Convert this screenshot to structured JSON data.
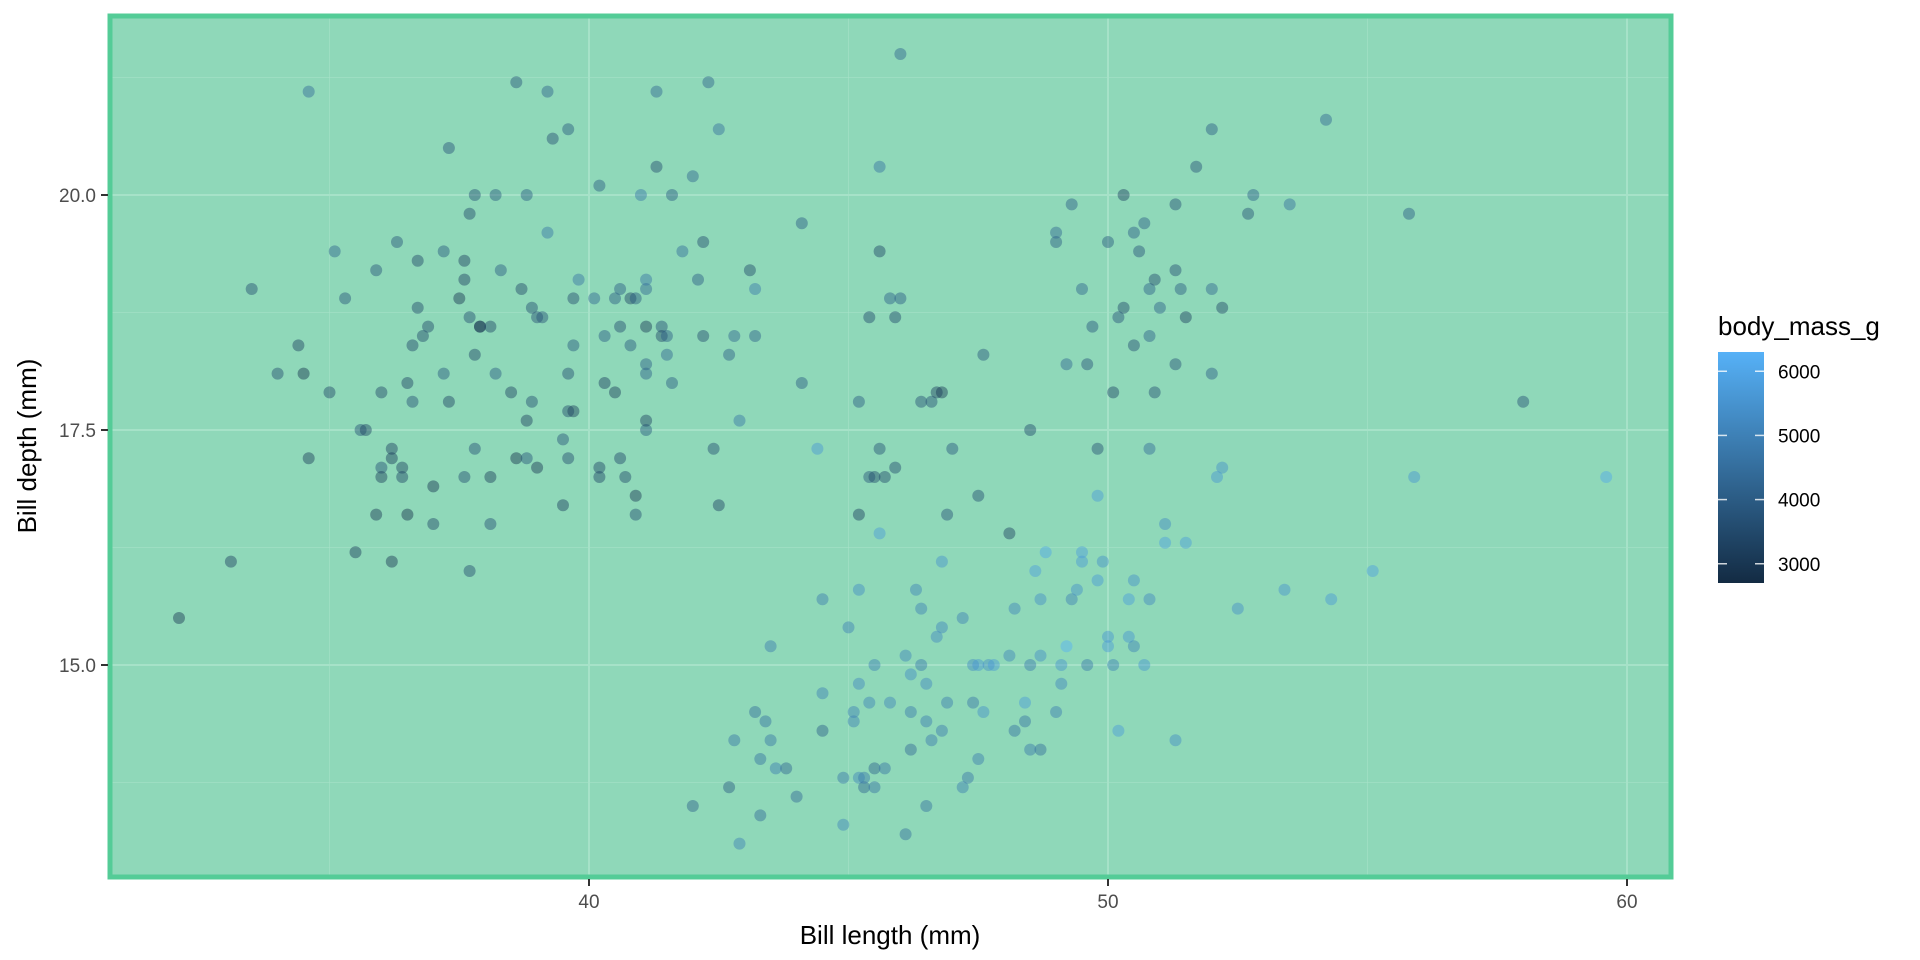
{
  "chart_data": {
    "type": "scatter",
    "title": "",
    "xlabel": "Bill length (mm)",
    "ylabel": "Bill depth (mm)",
    "xlim": [
      31.0,
      61.0
    ],
    "ylim": [
      12.7,
      21.9
    ],
    "x_ticks": [
      40,
      50,
      60
    ],
    "x_tick_labels": [
      "40",
      "50",
      "60"
    ],
    "y_ticks": [
      15.0,
      17.5,
      20.0
    ],
    "y_tick_labels": [
      "15.0",
      "17.5",
      "20.0"
    ],
    "grid": true,
    "panel_background": "#8fd8b9",
    "panel_border": "#54cc97",
    "gridline_color": "#a6e2c8",
    "legend": {
      "title": "body_mass_g",
      "position": "right",
      "type": "colorbar",
      "ticks": [
        3000,
        4000,
        5000,
        6000
      ],
      "tick_labels": [
        "3000",
        "4000",
        "5000",
        "6000"
      ],
      "low_color": "#132b43",
      "high_color": "#56b1f7",
      "range": [
        2700,
        6300
      ]
    },
    "point_alpha": 0.45,
    "points": [
      [
        32.1,
        15.5,
        3050
      ],
      [
        33.1,
        16.1,
        3300
      ],
      [
        33.5,
        19.0,
        3600
      ],
      [
        34.0,
        18.1,
        3550
      ],
      [
        34.4,
        18.4,
        3325
      ],
      [
        34.5,
        18.1,
        2900
      ],
      [
        34.6,
        21.1,
        4400
      ],
      [
        34.6,
        17.2,
        3200
      ],
      [
        35.0,
        17.9,
        3450
      ],
      [
        35.1,
        19.4,
        4200
      ],
      [
        35.3,
        18.9,
        3800
      ],
      [
        35.5,
        16.2,
        3150
      ],
      [
        35.6,
        17.5,
        3700
      ],
      [
        35.7,
        17.5,
        3350
      ],
      [
        35.9,
        16.6,
        3050
      ],
      [
        35.9,
        19.2,
        3800
      ],
      [
        36.0,
        17.9,
        3450
      ],
      [
        36.0,
        17.1,
        3700
      ],
      [
        36.0,
        17.0,
        3200
      ],
      [
        36.2,
        16.1,
        3050
      ],
      [
        36.2,
        17.3,
        3300
      ],
      [
        36.2,
        17.2,
        3150
      ],
      [
        36.3,
        19.5,
        3800
      ],
      [
        36.4,
        17.1,
        3325
      ],
      [
        36.4,
        17.0,
        3400
      ],
      [
        36.5,
        16.6,
        2850
      ],
      [
        36.5,
        18.0,
        3350
      ],
      [
        36.6,
        17.8,
        3700
      ],
      [
        36.6,
        18.4,
        3475
      ],
      [
        36.7,
        18.8,
        3500
      ],
      [
        36.7,
        19.3,
        3450
      ],
      [
        36.8,
        18.5,
        3500
      ],
      [
        36.9,
        18.6,
        3500
      ],
      [
        37.0,
        16.9,
        3000
      ],
      [
        37.0,
        16.5,
        3450
      ],
      [
        37.2,
        18.1,
        3900
      ],
      [
        37.2,
        19.4,
        3900
      ],
      [
        37.3,
        20.5,
        3775
      ],
      [
        37.3,
        17.8,
        3350
      ],
      [
        37.5,
        18.9,
        2975
      ],
      [
        37.6,
        19.1,
        3300
      ],
      [
        37.6,
        17.0,
        3600
      ],
      [
        37.6,
        19.3,
        3300
      ],
      [
        37.7,
        18.7,
        3600
      ],
      [
        37.7,
        16.0,
        3575
      ],
      [
        37.7,
        19.8,
        3500
      ],
      [
        37.8,
        18.3,
        3400
      ],
      [
        37.8,
        17.3,
        3700
      ],
      [
        37.8,
        20.0,
        3700
      ],
      [
        37.9,
        18.6,
        3200
      ],
      [
        37.9,
        18.6,
        2900
      ],
      [
        38.1,
        17.0,
        3175
      ],
      [
        38.1,
        18.6,
        3425
      ],
      [
        38.1,
        16.5,
        3700
      ],
      [
        38.2,
        18.1,
        3950
      ],
      [
        38.2,
        20.0,
        3900
      ],
      [
        38.3,
        19.2,
        3950
      ],
      [
        38.5,
        17.9,
        3325
      ],
      [
        38.6,
        21.2,
        3800
      ],
      [
        38.6,
        17.2,
        2900
      ],
      [
        38.7,
        19.0,
        3450
      ],
      [
        38.8,
        17.2,
        3800
      ],
      [
        38.8,
        20.0,
        3950
      ],
      [
        38.8,
        17.6,
        3275
      ],
      [
        38.9,
        17.8,
        3625
      ],
      [
        38.9,
        18.8,
        3600
      ],
      [
        39.0,
        17.1,
        3050
      ],
      [
        39.0,
        18.7,
        3650
      ],
      [
        39.1,
        18.7,
        3750
      ],
      [
        39.2,
        19.6,
        4675
      ],
      [
        39.2,
        21.1,
        4150
      ],
      [
        39.3,
        20.6,
        3650
      ],
      [
        39.5,
        17.4,
        3800
      ],
      [
        39.5,
        16.7,
        3250
      ],
      [
        39.6,
        17.7,
        3500
      ],
      [
        39.6,
        17.2,
        3550
      ],
      [
        39.6,
        18.1,
        3600
      ],
      [
        39.6,
        20.7,
        3900
      ],
      [
        39.7,
        18.4,
        3900
      ],
      [
        39.7,
        17.7,
        3200
      ],
      [
        39.7,
        18.9,
        3550
      ],
      [
        39.8,
        19.1,
        4650
      ],
      [
        40.1,
        18.9,
        4300
      ],
      [
        40.2,
        17.0,
        3400
      ],
      [
        40.2,
        17.1,
        3400
      ],
      [
        40.2,
        20.1,
        3975
      ],
      [
        40.3,
        18.0,
        3250
      ],
      [
        40.3,
        18.5,
        4000
      ],
      [
        40.5,
        17.9,
        3200
      ],
      [
        40.5,
        18.9,
        3950
      ],
      [
        40.6,
        18.6,
        3550
      ],
      [
        40.6,
        19.0,
        4000
      ],
      [
        40.6,
        17.2,
        3475
      ],
      [
        40.7,
        17.0,
        3500
      ],
      [
        40.8,
        18.4,
        3900
      ],
      [
        40.8,
        18.9,
        3350
      ],
      [
        40.9,
        16.6,
        3600
      ],
      [
        40.9,
        16.8,
        3050
      ],
      [
        40.9,
        18.9,
        3900
      ],
      [
        41.0,
        20.0,
        4725
      ],
      [
        41.1,
        17.5,
        3900
      ],
      [
        41.1,
        18.6,
        3100
      ],
      [
        41.1,
        19.0,
        4275
      ],
      [
        41.1,
        17.6,
        3325
      ],
      [
        41.1,
        18.2,
        4050
      ],
      [
        41.1,
        18.1,
        4100
      ],
      [
        41.1,
        19.1,
        4650
      ],
      [
        41.3,
        21.1,
        4300
      ],
      [
        41.3,
        20.3,
        3550
      ],
      [
        41.4,
        18.6,
        3700
      ],
      [
        41.4,
        18.5,
        3450
      ],
      [
        41.5,
        18.3,
        4300
      ],
      [
        41.5,
        18.5,
        4000
      ],
      [
        41.6,
        18.0,
        3950
      ],
      [
        41.6,
        20.0,
        3950
      ],
      [
        41.8,
        19.4,
        4450
      ],
      [
        42.0,
        20.2,
        4250
      ],
      [
        42.1,
        19.1,
        4000
      ],
      [
        42.2,
        18.5,
        3550
      ],
      [
        42.2,
        19.5,
        3550
      ],
      [
        42.3,
        21.2,
        4150
      ],
      [
        42.4,
        17.3,
        3600
      ],
      [
        42.5,
        20.7,
        4500
      ],
      [
        42.5,
        16.7,
        3350
      ],
      [
        42.7,
        18.3,
        4075
      ],
      [
        42.8,
        18.5,
        4250
      ],
      [
        42.9,
        17.6,
        4700
      ],
      [
        43.1,
        19.2,
        3500
      ],
      [
        43.2,
        18.5,
        4100
      ],
      [
        43.2,
        19.0,
        4775
      ],
      [
        44.1,
        18.0,
        3975
      ],
      [
        44.1,
        19.7,
        4000
      ],
      [
        45.8,
        18.9,
        4100
      ],
      [
        45.6,
        20.3,
        4600
      ],
      [
        46.0,
        21.5,
        4200
      ],
      [
        42.0,
        13.5,
        4150
      ],
      [
        42.7,
        13.7,
        3950
      ],
      [
        42.8,
        14.2,
        4700
      ],
      [
        42.9,
        13.1,
        5000
      ],
      [
        43.2,
        14.5,
        4450
      ],
      [
        43.3,
        13.4,
        4400
      ],
      [
        43.3,
        14.0,
        4575
      ],
      [
        43.4,
        14.4,
        4600
      ],
      [
        43.5,
        14.2,
        4700
      ],
      [
        43.5,
        15.2,
        4875
      ],
      [
        43.6,
        13.9,
        4900
      ],
      [
        43.8,
        13.9,
        4300
      ],
      [
        44.0,
        13.6,
        4350
      ],
      [
        44.4,
        17.3,
        5600
      ],
      [
        44.5,
        14.3,
        4100
      ],
      [
        44.5,
        15.7,
        4875
      ],
      [
        44.5,
        14.7,
        5000
      ],
      [
        44.9,
        13.3,
        5100
      ],
      [
        44.9,
        13.8,
        4750
      ],
      [
        45.0,
        15.4,
        5000
      ],
      [
        45.1,
        14.5,
        5000
      ],
      [
        45.1,
        14.4,
        5000
      ],
      [
        45.2,
        13.8,
        5100
      ],
      [
        45.2,
        14.8,
        5200
      ],
      [
        45.2,
        15.8,
        5300
      ],
      [
        45.3,
        13.7,
        4300
      ],
      [
        45.3,
        13.8,
        4750
      ],
      [
        45.4,
        14.6,
        5025
      ],
      [
        45.4,
        18.7,
        3525
      ],
      [
        45.5,
        13.7,
        4650
      ],
      [
        45.5,
        13.9,
        4200
      ],
      [
        45.5,
        15.0,
        5000
      ],
      [
        45.6,
        16.4,
        5700
      ],
      [
        45.7,
        13.9,
        4650
      ],
      [
        45.8,
        14.6,
        5100
      ],
      [
        45.9,
        17.1,
        3575
      ],
      [
        46.1,
        15.1,
        5100
      ],
      [
        46.1,
        13.2,
        4500
      ],
      [
        46.2,
        14.1,
        4375
      ],
      [
        46.2,
        14.5,
        4800
      ],
      [
        46.2,
        14.9,
        5300
      ],
      [
        46.3,
        15.8,
        5050
      ],
      [
        46.4,
        15.0,
        4800
      ],
      [
        46.4,
        15.6,
        5000
      ],
      [
        46.5,
        13.5,
        4550
      ],
      [
        46.5,
        14.4,
        4900
      ],
      [
        46.5,
        14.8,
        5200
      ],
      [
        46.6,
        14.2,
        4850
      ],
      [
        46.7,
        15.3,
        5200
      ],
      [
        46.8,
        15.4,
        5150
      ],
      [
        46.8,
        14.3,
        4850
      ],
      [
        46.8,
        16.1,
        5500
      ],
      [
        46.9,
        14.6,
        4875
      ],
      [
        47.2,
        13.7,
        4925
      ],
      [
        47.2,
        15.5,
        4975
      ],
      [
        47.3,
        13.8,
        4725
      ],
      [
        47.4,
        14.6,
        4725
      ],
      [
        47.4,
        15.0,
        5250
      ],
      [
        47.5,
        14.0,
        4875
      ],
      [
        47.5,
        15.0,
        5550
      ],
      [
        47.6,
        14.5,
        5400
      ],
      [
        47.7,
        15.0,
        5350
      ],
      [
        47.8,
        15.0,
        5650
      ],
      [
        48.1,
        15.1,
        5100
      ],
      [
        48.2,
        14.3,
        4600
      ],
      [
        48.2,
        15.6,
        5100
      ],
      [
        48.4,
        14.4,
        4625
      ],
      [
        48.4,
        14.6,
        5700
      ],
      [
        48.5,
        14.1,
        4775
      ],
      [
        48.5,
        15.0,
        4850
      ],
      [
        48.6,
        16.0,
        5800
      ],
      [
        48.7,
        14.1,
        4450
      ],
      [
        48.7,
        15.7,
        5350
      ],
      [
        48.7,
        15.1,
        5350
      ],
      [
        48.8,
        16.2,
        6000
      ],
      [
        49.0,
        14.5,
        4900
      ],
      [
        49.1,
        14.8,
        5150
      ],
      [
        49.1,
        15.0,
        5475
      ],
      [
        49.2,
        15.2,
        6300
      ],
      [
        49.3,
        15.7,
        5000
      ],
      [
        49.4,
        15.8,
        5400
      ],
      [
        49.5,
        16.2,
        5800
      ],
      [
        49.5,
        16.1,
        5650
      ],
      [
        49.6,
        15.0,
        4750
      ],
      [
        49.8,
        16.8,
        5700
      ],
      [
        49.8,
        15.9,
        5650
      ],
      [
        49.9,
        16.1,
        5400
      ],
      [
        50.0,
        15.2,
        5700
      ],
      [
        50.0,
        15.3,
        5550
      ],
      [
        50.1,
        15.0,
        5000
      ],
      [
        50.2,
        14.3,
        5700
      ],
      [
        50.4,
        15.7,
        5750
      ],
      [
        50.4,
        15.3,
        5550
      ],
      [
        50.5,
        15.2,
        5050
      ],
      [
        50.5,
        15.9,
        5400
      ],
      [
        50.7,
        15.0,
        5550
      ],
      [
        50.8,
        15.7,
        5200
      ],
      [
        51.1,
        16.3,
        5850
      ],
      [
        51.1,
        16.5,
        5250
      ],
      [
        51.3,
        14.2,
        5300
      ],
      [
        51.5,
        16.3,
        5750
      ],
      [
        52.1,
        17.0,
        5550
      ],
      [
        52.2,
        17.1,
        5400
      ],
      [
        52.5,
        15.6,
        5350
      ],
      [
        53.4,
        15.8,
        5500
      ],
      [
        54.3,
        15.7,
        5650
      ],
      [
        55.1,
        16.0,
        5850
      ],
      [
        55.9,
        17.0,
        5550
      ],
      [
        59.6,
        17.0,
        6050
      ],
      [
        46.0,
        18.9,
        4000
      ],
      [
        46.4,
        17.8,
        3700
      ],
      [
        46.6,
        17.8,
        3700
      ],
      [
        46.7,
        17.9,
        3300
      ],
      [
        46.8,
        17.9,
        3100
      ],
      [
        46.9,
        16.6,
        3750
      ],
      [
        47.0,
        17.3,
        3875
      ],
      [
        47.5,
        16.8,
        3625
      ],
      [
        47.6,
        18.3,
        3850
      ],
      [
        48.1,
        16.4,
        3325
      ],
      [
        48.5,
        17.5,
        3525
      ],
      [
        49.0,
        19.5,
        3950
      ],
      [
        49.0,
        19.6,
        4300
      ],
      [
        49.2,
        18.2,
        4300
      ],
      [
        49.3,
        19.9,
        4050
      ],
      [
        49.5,
        19.0,
        4200
      ],
      [
        49.6,
        18.2,
        3775
      ],
      [
        49.7,
        18.6,
        3875
      ],
      [
        49.8,
        17.3,
        3675
      ],
      [
        50.0,
        19.5,
        3900
      ],
      [
        50.1,
        17.9,
        3400
      ],
      [
        50.2,
        18.7,
        3775
      ],
      [
        50.3,
        20.0,
        3300
      ],
      [
        50.3,
        18.8,
        3500
      ],
      [
        50.5,
        18.4,
        3650
      ],
      [
        50.5,
        19.6,
        4050
      ],
      [
        50.6,
        19.4,
        3775
      ],
      [
        50.7,
        19.7,
        4050
      ],
      [
        50.8,
        18.5,
        4100
      ],
      [
        50.8,
        19.0,
        4100
      ],
      [
        50.9,
        19.1,
        3550
      ],
      [
        50.9,
        17.9,
        3675
      ],
      [
        51.0,
        18.8,
        4100
      ],
      [
        51.3,
        18.2,
        3750
      ],
      [
        51.3,
        19.2,
        3650
      ],
      [
        51.3,
        19.9,
        3700
      ],
      [
        51.4,
        19.0,
        3950
      ],
      [
        51.5,
        18.7,
        3250
      ],
      [
        51.7,
        20.3,
        3750
      ],
      [
        52.0,
        18.1,
        4050
      ],
      [
        52.0,
        19.0,
        4250
      ],
      [
        52.0,
        20.7,
        4000
      ],
      [
        52.2,
        18.8,
        3450
      ],
      [
        52.7,
        19.8,
        3725
      ],
      [
        52.8,
        20.0,
        4100
      ],
      [
        53.5,
        19.9,
        4500
      ],
      [
        54.2,
        20.8,
        4300
      ],
      [
        55.8,
        19.8,
        4000
      ],
      [
        58.0,
        17.8,
        3700
      ],
      [
        50.8,
        17.3,
        4400
      ],
      [
        45.2,
        16.6,
        3250
      ],
      [
        45.4,
        17.0,
        3800
      ],
      [
        45.5,
        17.0,
        3500
      ],
      [
        45.6,
        17.3,
        3725
      ],
      [
        45.7,
        17.0,
        3500
      ],
      [
        45.2,
        17.8,
        3950
      ],
      [
        45.6,
        19.4,
        3400
      ],
      [
        45.9,
        18.7,
        3525
      ]
    ]
  }
}
